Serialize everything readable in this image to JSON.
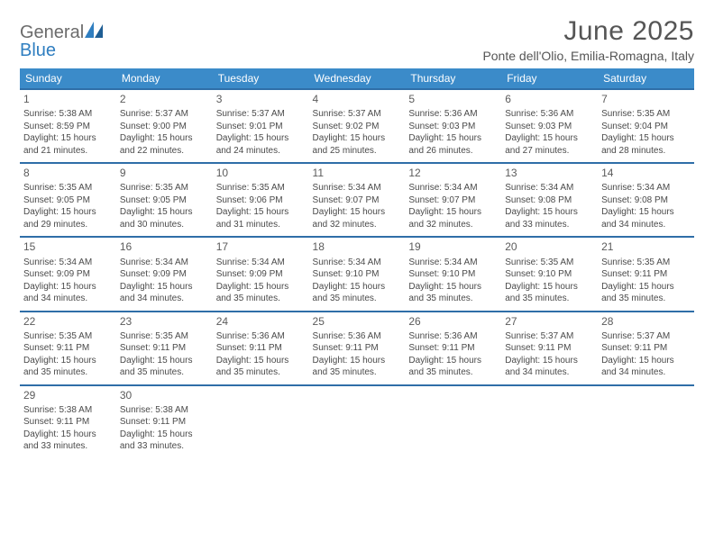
{
  "brand": {
    "word1": "General",
    "word2": "Blue"
  },
  "title": "June 2025",
  "location": "Ponte dell'Olio, Emilia-Romagna, Italy",
  "colors": {
    "header_bg": "#3b8bc9",
    "header_text": "#ffffff",
    "row_border": "#2f6ea8",
    "body_text": "#4a4a4a",
    "title_text": "#555555",
    "brand_gray": "#6b6b6b",
    "brand_blue": "#2f7ec0",
    "page_bg": "#ffffff"
  },
  "weekdays": [
    "Sunday",
    "Monday",
    "Tuesday",
    "Wednesday",
    "Thursday",
    "Friday",
    "Saturday"
  ],
  "weeks": [
    [
      {
        "n": "1",
        "sr": "5:38 AM",
        "ss": "8:59 PM",
        "dl": "15 hours and 21 minutes."
      },
      {
        "n": "2",
        "sr": "5:37 AM",
        "ss": "9:00 PM",
        "dl": "15 hours and 22 minutes."
      },
      {
        "n": "3",
        "sr": "5:37 AM",
        "ss": "9:01 PM",
        "dl": "15 hours and 24 minutes."
      },
      {
        "n": "4",
        "sr": "5:37 AM",
        "ss": "9:02 PM",
        "dl": "15 hours and 25 minutes."
      },
      {
        "n": "5",
        "sr": "5:36 AM",
        "ss": "9:03 PM",
        "dl": "15 hours and 26 minutes."
      },
      {
        "n": "6",
        "sr": "5:36 AM",
        "ss": "9:03 PM",
        "dl": "15 hours and 27 minutes."
      },
      {
        "n": "7",
        "sr": "5:35 AM",
        "ss": "9:04 PM",
        "dl": "15 hours and 28 minutes."
      }
    ],
    [
      {
        "n": "8",
        "sr": "5:35 AM",
        "ss": "9:05 PM",
        "dl": "15 hours and 29 minutes."
      },
      {
        "n": "9",
        "sr": "5:35 AM",
        "ss": "9:05 PM",
        "dl": "15 hours and 30 minutes."
      },
      {
        "n": "10",
        "sr": "5:35 AM",
        "ss": "9:06 PM",
        "dl": "15 hours and 31 minutes."
      },
      {
        "n": "11",
        "sr": "5:34 AM",
        "ss": "9:07 PM",
        "dl": "15 hours and 32 minutes."
      },
      {
        "n": "12",
        "sr": "5:34 AM",
        "ss": "9:07 PM",
        "dl": "15 hours and 32 minutes."
      },
      {
        "n": "13",
        "sr": "5:34 AM",
        "ss": "9:08 PM",
        "dl": "15 hours and 33 minutes."
      },
      {
        "n": "14",
        "sr": "5:34 AM",
        "ss": "9:08 PM",
        "dl": "15 hours and 34 minutes."
      }
    ],
    [
      {
        "n": "15",
        "sr": "5:34 AM",
        "ss": "9:09 PM",
        "dl": "15 hours and 34 minutes."
      },
      {
        "n": "16",
        "sr": "5:34 AM",
        "ss": "9:09 PM",
        "dl": "15 hours and 34 minutes."
      },
      {
        "n": "17",
        "sr": "5:34 AM",
        "ss": "9:09 PM",
        "dl": "15 hours and 35 minutes."
      },
      {
        "n": "18",
        "sr": "5:34 AM",
        "ss": "9:10 PM",
        "dl": "15 hours and 35 minutes."
      },
      {
        "n": "19",
        "sr": "5:34 AM",
        "ss": "9:10 PM",
        "dl": "15 hours and 35 minutes."
      },
      {
        "n": "20",
        "sr": "5:35 AM",
        "ss": "9:10 PM",
        "dl": "15 hours and 35 minutes."
      },
      {
        "n": "21",
        "sr": "5:35 AM",
        "ss": "9:11 PM",
        "dl": "15 hours and 35 minutes."
      }
    ],
    [
      {
        "n": "22",
        "sr": "5:35 AM",
        "ss": "9:11 PM",
        "dl": "15 hours and 35 minutes."
      },
      {
        "n": "23",
        "sr": "5:35 AM",
        "ss": "9:11 PM",
        "dl": "15 hours and 35 minutes."
      },
      {
        "n": "24",
        "sr": "5:36 AM",
        "ss": "9:11 PM",
        "dl": "15 hours and 35 minutes."
      },
      {
        "n": "25",
        "sr": "5:36 AM",
        "ss": "9:11 PM",
        "dl": "15 hours and 35 minutes."
      },
      {
        "n": "26",
        "sr": "5:36 AM",
        "ss": "9:11 PM",
        "dl": "15 hours and 35 minutes."
      },
      {
        "n": "27",
        "sr": "5:37 AM",
        "ss": "9:11 PM",
        "dl": "15 hours and 34 minutes."
      },
      {
        "n": "28",
        "sr": "5:37 AM",
        "ss": "9:11 PM",
        "dl": "15 hours and 34 minutes."
      }
    ],
    [
      {
        "n": "29",
        "sr": "5:38 AM",
        "ss": "9:11 PM",
        "dl": "15 hours and 33 minutes."
      },
      {
        "n": "30",
        "sr": "5:38 AM",
        "ss": "9:11 PM",
        "dl": "15 hours and 33 minutes."
      },
      null,
      null,
      null,
      null,
      null
    ]
  ],
  "labels": {
    "sunrise": "Sunrise: ",
    "sunset": "Sunset: ",
    "daylight": "Daylight: "
  }
}
